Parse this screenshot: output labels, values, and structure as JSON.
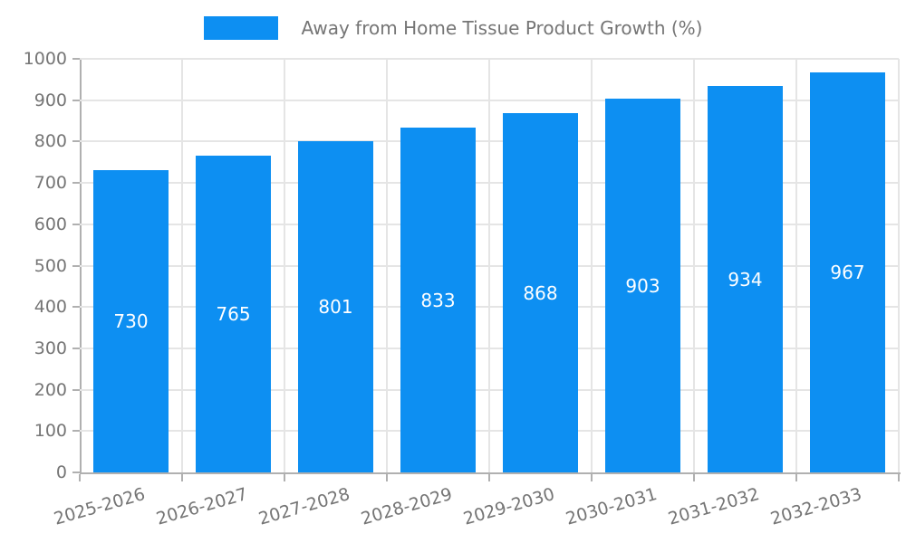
{
  "legend": {
    "label": "Away from Home Tissue Product Growth (%)"
  },
  "colors": {
    "bar": "#0d8ff2",
    "axis": "#b0b0b0",
    "grid": "#e5e5e5",
    "tick_text": "#757575",
    "bar_label_text": "#ffffff",
    "background": "#ffffff"
  },
  "chart_data": {
    "type": "bar",
    "title": "Away from Home Tissue Product Growth (%)",
    "categories": [
      "2025-2026",
      "2026-2027",
      "2027-2028",
      "2028-2029",
      "2029-2030",
      "2030-2031",
      "2031-2032",
      "2032-2033"
    ],
    "values": [
      730,
      765,
      801,
      833,
      868,
      903,
      934,
      967
    ],
    "value_labels": [
      "730",
      "765",
      "801",
      "833",
      "868",
      "903",
      "934",
      "967"
    ],
    "ytick_labels": [
      "0",
      "100",
      "200",
      "300",
      "400",
      "500",
      "600",
      "700",
      "800",
      "900",
      "1000"
    ],
    "xlabel": "",
    "ylabel": "",
    "ylim": [
      0,
      1000
    ],
    "ytick_step": 100,
    "grid": true,
    "bar_label_position": "inside-center",
    "legend_position": "top-center"
  }
}
